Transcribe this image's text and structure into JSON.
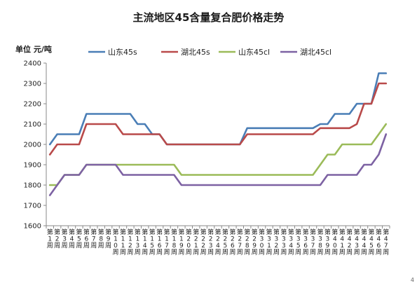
{
  "chart_data": {
    "type": "line",
    "title": "主流地区45含量复合肥价格走势",
    "ylabel": "单位 元/吨",
    "xlabel": "",
    "ylim": [
      1600,
      2400
    ],
    "yticks": [
      1600,
      1700,
      1800,
      1900,
      2000,
      2100,
      2200,
      2300,
      2400
    ],
    "grid": false,
    "legend_position": "top",
    "categories": [
      "第1周",
      "第2周",
      "第3周",
      "第4周",
      "第5周",
      "第6周",
      "第7周",
      "第8周",
      "第9周",
      "第10周",
      "第11周",
      "第12周",
      "第13周",
      "第14周",
      "第15周",
      "第16周",
      "第17周",
      "第18周",
      "第19周",
      "第20周",
      "第21周",
      "第22周",
      "第23周",
      "第24周",
      "第25周",
      "第26周",
      "第27周",
      "第28周",
      "第29周",
      "第30周",
      "第31周",
      "第32周",
      "第33周",
      "第34周",
      "第35周",
      "第36周",
      "第37周",
      "第38周",
      "第39周",
      "第40周",
      "第41周",
      "第42周",
      "第43周",
      "第44周",
      "第45周",
      "第46周",
      "第47周"
    ],
    "series": [
      {
        "name": "山东45s",
        "color": "#4a7eb6",
        "values": [
          2000,
          2050,
          2050,
          2050,
          2050,
          2150,
          2150,
          2150,
          2150,
          2150,
          2150,
          2150,
          2100,
          2100,
          2050,
          2050,
          2000,
          2000,
          2000,
          2000,
          2000,
          2000,
          2000,
          2000,
          2000,
          2000,
          2000,
          2080,
          2080,
          2080,
          2080,
          2080,
          2080,
          2080,
          2080,
          2080,
          2080,
          2100,
          2100,
          2150,
          2150,
          2150,
          2200,
          2200,
          2200,
          2350,
          2350
        ]
      },
      {
        "name": "湖北45s",
        "color": "#b94a4a",
        "values": [
          1950,
          2000,
          2000,
          2000,
          2000,
          2100,
          2100,
          2100,
          2100,
          2100,
          2050,
          2050,
          2050,
          2050,
          2050,
          2050,
          2000,
          2000,
          2000,
          2000,
          2000,
          2000,
          2000,
          2000,
          2000,
          2000,
          2000,
          2050,
          2050,
          2050,
          2050,
          2050,
          2050,
          2050,
          2050,
          2050,
          2050,
          2080,
          2080,
          2080,
          2080,
          2080,
          2100,
          2200,
          2200,
          2300,
          2300
        ]
      },
      {
        "name": "山东45cl",
        "color": "#9bbb59",
        "values": [
          1800,
          1800,
          1850,
          1850,
          1850,
          1900,
          1900,
          1900,
          1900,
          1900,
          1900,
          1900,
          1900,
          1900,
          1900,
          1900,
          1900,
          1900,
          1850,
          1850,
          1850,
          1850,
          1850,
          1850,
          1850,
          1850,
          1850,
          1850,
          1850,
          1850,
          1850,
          1850,
          1850,
          1850,
          1850,
          1850,
          1850,
          1900,
          1950,
          1950,
          2000,
          2000,
          2000,
          2000,
          2000,
          2050,
          2100
        ]
      },
      {
        "name": "湖北45cl",
        "color": "#7d62a3",
        "values": [
          1750,
          1800,
          1850,
          1850,
          1850,
          1900,
          1900,
          1900,
          1900,
          1900,
          1850,
          1850,
          1850,
          1850,
          1850,
          1850,
          1850,
          1850,
          1800,
          1800,
          1800,
          1800,
          1800,
          1800,
          1800,
          1800,
          1800,
          1800,
          1800,
          1800,
          1800,
          1800,
          1800,
          1800,
          1800,
          1800,
          1800,
          1800,
          1850,
          1850,
          1850,
          1850,
          1850,
          1900,
          1900,
          1950,
          2050
        ]
      }
    ]
  },
  "corner_mark": "4"
}
